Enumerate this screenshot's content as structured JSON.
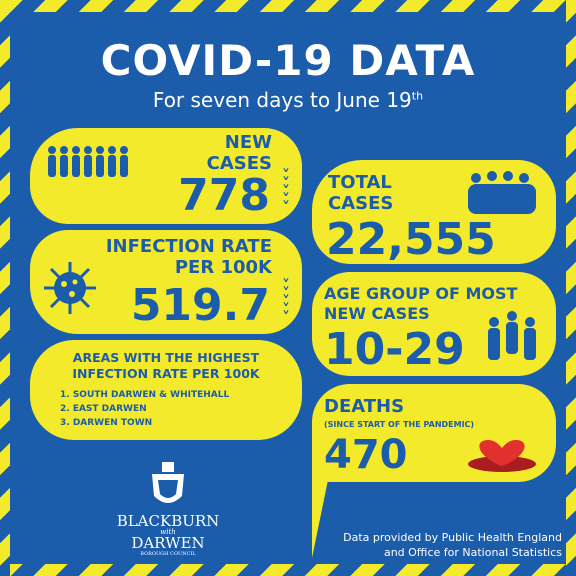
{
  "title": "COVID-19 DATA",
  "subtitle": {
    "text": "For seven days to June 19",
    "superscript": "th"
  },
  "cards": {
    "new_cases": {
      "label": [
        "NEW",
        "CASES"
      ],
      "value": "778"
    },
    "infection_rate": {
      "label": [
        "INFECTION RATE",
        "PER 100K"
      ],
      "value": "519.7"
    },
    "areas": {
      "title": [
        "AREAS WITH THE HIGHEST",
        "INFECTION RATE PER 100K"
      ],
      "items": [
        "1. SOUTH DARWEN & WHITEHALL",
        "2. EAST DARWEN",
        "3. DARWEN TOWN"
      ]
    },
    "total_cases": {
      "label": [
        "TOTAL",
        "CASES"
      ],
      "value": "22,555"
    },
    "age_group": {
      "label": [
        "AGE GROUP OF MOST",
        "NEW CASES"
      ],
      "value": "10-29"
    },
    "deaths": {
      "label": "DEATHS",
      "note": "(SINCE START OF THE PANDEMIC)",
      "value": "470"
    }
  },
  "logo": {
    "line1": "BLACKBURN",
    "with": "with",
    "line2": "DARWEN",
    "council": "BOROUGH COUNCIL"
  },
  "footer": [
    "Data provided by Public Health England",
    "and Office for National Statistics"
  ]
}
